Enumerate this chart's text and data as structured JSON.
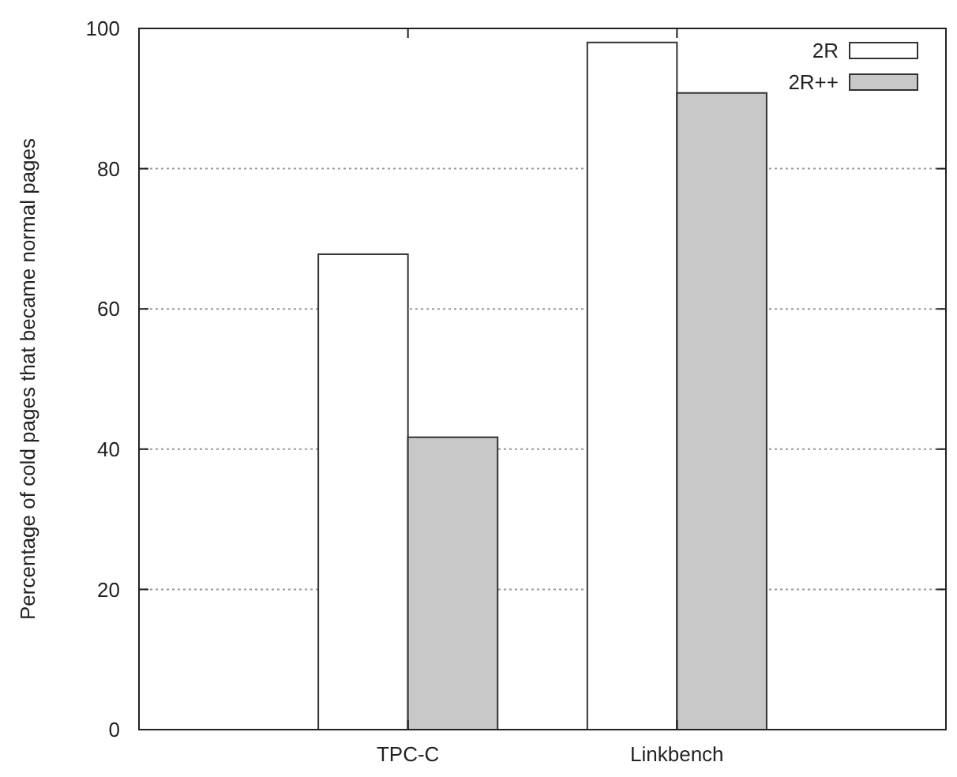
{
  "chart_data": {
    "type": "bar",
    "ylabel": "Percentage of cold pages that became normal pages",
    "categories": [
      "TPC-C",
      "Linkbench"
    ],
    "series": [
      {
        "name": "2R",
        "color": "#ffffff",
        "values": [
          67.8,
          98.0
        ]
      },
      {
        "name": "2R++",
        "color": "#c8c8c8",
        "values": [
          41.7,
          90.8
        ]
      }
    ],
    "ylim": [
      0,
      100
    ],
    "yticks": [
      0,
      20,
      40,
      60,
      80,
      100
    ],
    "grid": "y",
    "legend": "top right"
  }
}
